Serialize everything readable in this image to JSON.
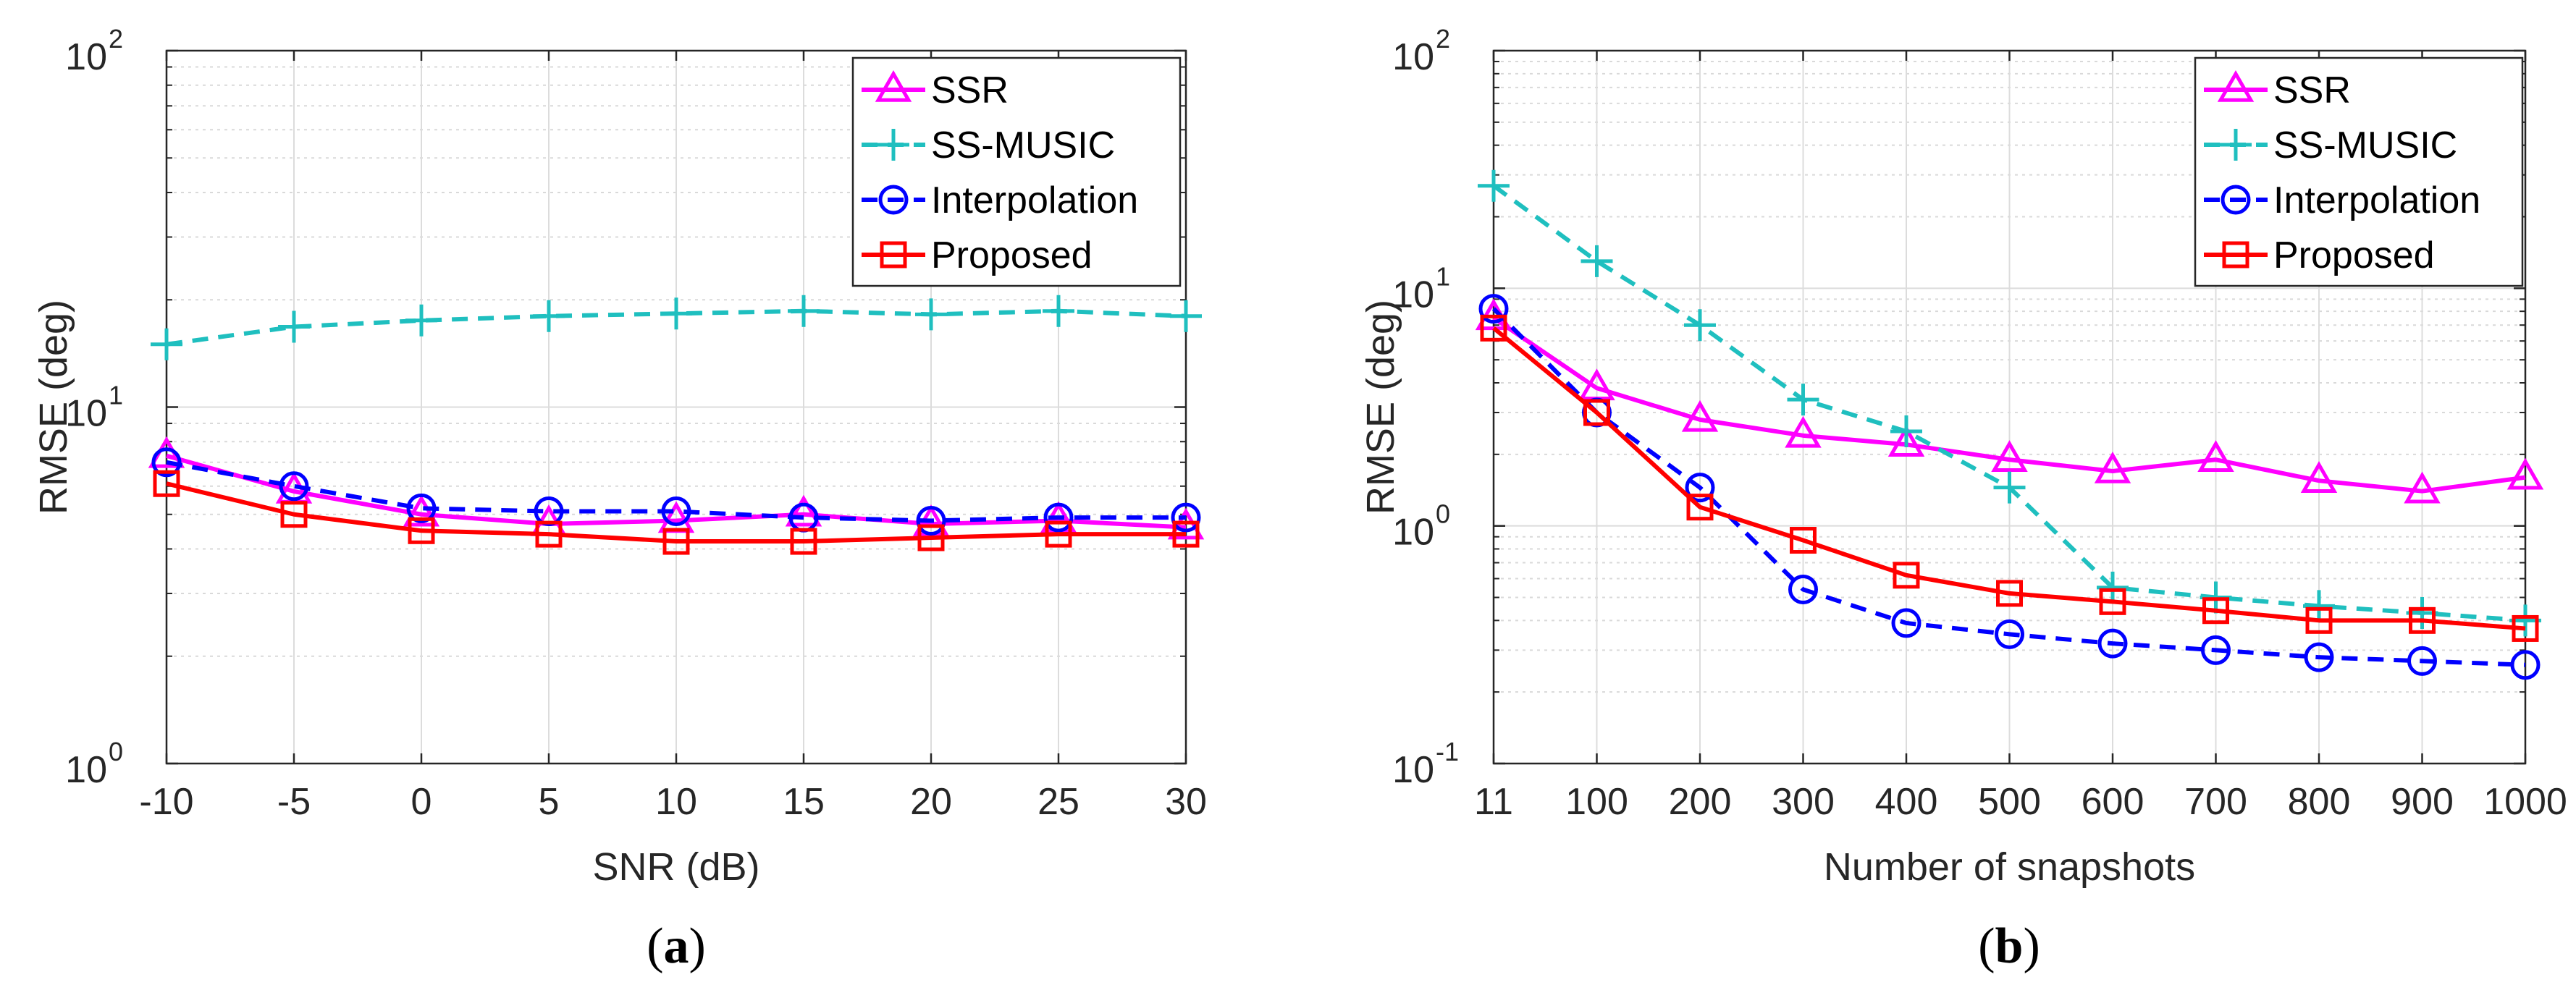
{
  "chart_data": [
    {
      "type": "line",
      "caption": {
        "open": "(",
        "letter": "a",
        "close": ")"
      },
      "xlabel": "SNR (dB)",
      "ylabel": "RMSE (deg)",
      "yscale": "log",
      "ylim": [
        1,
        100
      ],
      "y_ticks": [
        {
          "base": "10",
          "exp": "0"
        },
        {
          "base": "10",
          "exp": "1"
        },
        {
          "base": "10",
          "exp": "2"
        }
      ],
      "x": [
        -10,
        -5,
        0,
        5,
        10,
        15,
        20,
        25,
        30
      ],
      "x_ticks": [
        "-10",
        "-5",
        "0",
        "5",
        "10",
        "15",
        "20",
        "25",
        "30"
      ],
      "xlim": [
        -10,
        30
      ],
      "grid": true,
      "legend_position": "top-right",
      "series": [
        {
          "name": "SSR",
          "color": "#ff00ff",
          "marker": "triangle",
          "line": "solid",
          "values": [
            7.3,
            5.8,
            5.0,
            4.7,
            4.8,
            5.0,
            4.7,
            4.8,
            4.6
          ]
        },
        {
          "name": "SS-MUSIC",
          "color": "#1fbfbf",
          "marker": "plus",
          "line": "dashed",
          "values": [
            15.0,
            16.8,
            17.5,
            18.0,
            18.3,
            18.6,
            18.2,
            18.6,
            18.0
          ]
        },
        {
          "name": "Interpolation",
          "color": "#0000ff",
          "marker": "circle",
          "line": "dashed",
          "values": [
            7.0,
            6.0,
            5.2,
            5.1,
            5.1,
            4.9,
            4.8,
            4.9,
            4.9
          ]
        },
        {
          "name": "Proposed",
          "color": "#ff0000",
          "marker": "square",
          "line": "solid",
          "values": [
            6.1,
            5.0,
            4.5,
            4.4,
            4.2,
            4.2,
            4.3,
            4.4,
            4.4
          ]
        }
      ]
    },
    {
      "type": "line",
      "caption": {
        "open": "(",
        "letter": "b",
        "close": ")"
      },
      "xlabel": "Number of snapshots",
      "ylabel": "RMSE (deg)",
      "yscale": "log",
      "ylim": [
        0.1,
        100
      ],
      "y_ticks": [
        {
          "base": "10",
          "exp": "-1"
        },
        {
          "base": "10",
          "exp": "0"
        },
        {
          "base": "10",
          "exp": "1"
        },
        {
          "base": "10",
          "exp": "2"
        }
      ],
      "x": [
        11,
        100,
        200,
        300,
        400,
        500,
        600,
        700,
        800,
        900,
        1000
      ],
      "x_ticks": [
        "11",
        "100",
        "200",
        "300",
        "400",
        "500",
        "600",
        "700",
        "800",
        "900",
        "1000"
      ],
      "grid": true,
      "legend_position": "top-right",
      "series": [
        {
          "name": "SSR",
          "color": "#ff00ff",
          "marker": "triangle",
          "line": "solid",
          "values": [
            7.5,
            3.8,
            2.8,
            2.4,
            2.2,
            1.9,
            1.7,
            1.9,
            1.55,
            1.4,
            1.6
          ]
        },
        {
          "name": "SS-MUSIC",
          "color": "#1fbfbf",
          "marker": "plus",
          "line": "dashed",
          "values": [
            27,
            13,
            7.0,
            3.4,
            2.5,
            1.45,
            0.55,
            0.5,
            0.46,
            0.43,
            0.4
          ]
        },
        {
          "name": "Interpolation",
          "color": "#0000ff",
          "marker": "circle",
          "line": "dashed",
          "values": [
            8.2,
            3.0,
            1.45,
            0.54,
            0.39,
            0.35,
            0.32,
            0.3,
            0.28,
            0.27,
            0.26
          ]
        },
        {
          "name": "Proposed",
          "color": "#ff0000",
          "marker": "square",
          "line": "solid",
          "values": [
            6.8,
            3.0,
            1.2,
            0.87,
            0.62,
            0.52,
            0.48,
            0.44,
            0.4,
            0.4,
            0.37
          ]
        }
      ]
    }
  ]
}
